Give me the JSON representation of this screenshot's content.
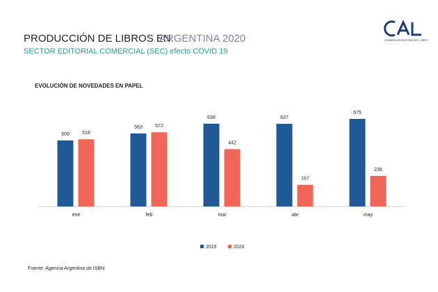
{
  "header": {
    "title_parts": [
      "PRODUCCIÓN DE LIBROS EN",
      "ARGENTINA 2020"
    ],
    "subtitle": "SECTOR EDITORIAL COMERCIAL (SEC) efecto COVID 19",
    "logo_text": "CÁMARA ARGENTINA DEL LIBRO"
  },
  "chart_data": {
    "type": "bar",
    "title": "EVOLUCIÓN DE NOVEDADES EN PAPEL",
    "categories": [
      "ene",
      "feb",
      "mar",
      "abr",
      "may"
    ],
    "series": [
      {
        "name": "2019",
        "color": "#1f5a96",
        "values": [
          509,
          563,
          638,
          637,
          675
        ]
      },
      {
        "name": "2020",
        "color": "#f0675a",
        "values": [
          518,
          572,
          442,
          167,
          236
        ]
      }
    ],
    "legend": "bottom"
  },
  "footer": {
    "source": "Fuente: Agencia Argentina de ISBN"
  }
}
